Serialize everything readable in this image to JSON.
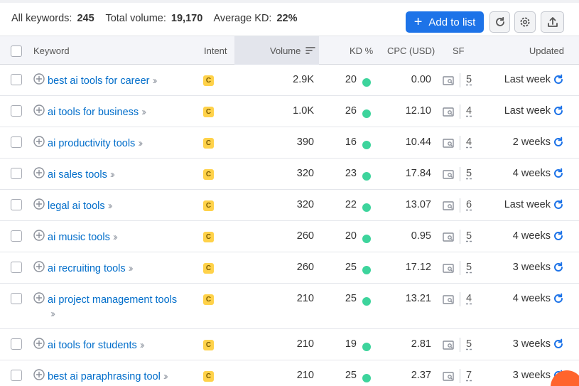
{
  "summary": {
    "all_keywords_label": "All keywords:",
    "all_keywords_value": "245",
    "total_volume_label": "Total volume:",
    "total_volume_value": "19,170",
    "average_kd_label": "Average KD:",
    "average_kd_value": "22%"
  },
  "toolbar": {
    "add_to_list_label": "Add to list",
    "refresh_icon": "refresh-icon",
    "settings_icon": "gear-icon",
    "export_icon": "export-icon",
    "accent_color": "#1d73e8"
  },
  "table": {
    "headers": {
      "keyword": "Keyword",
      "intent": "Intent",
      "volume": "Volume",
      "kd": "KD %",
      "cpc": "CPC (USD)",
      "sf": "SF",
      "updated": "Updated"
    },
    "sorted_by": "Volume",
    "rows": [
      {
        "keyword": "best ai tools for career",
        "intent": "C",
        "volume": "2.9K",
        "kd": "20",
        "cpc": "0.00",
        "sf": "5",
        "updated": "Last week"
      },
      {
        "keyword": "ai tools for business",
        "intent": "C",
        "volume": "1.0K",
        "kd": "26",
        "cpc": "12.10",
        "sf": "4",
        "updated": "Last week"
      },
      {
        "keyword": "ai productivity tools",
        "intent": "C",
        "volume": "390",
        "kd": "16",
        "cpc": "10.44",
        "sf": "4",
        "updated": "2 weeks"
      },
      {
        "keyword": "ai sales tools",
        "intent": "C",
        "volume": "320",
        "kd": "23",
        "cpc": "17.84",
        "sf": "5",
        "updated": "4 weeks"
      },
      {
        "keyword": "legal ai tools",
        "intent": "C",
        "volume": "320",
        "kd": "22",
        "cpc": "13.07",
        "sf": "6",
        "updated": "Last week"
      },
      {
        "keyword": "ai music tools",
        "intent": "C",
        "volume": "260",
        "kd": "20",
        "cpc": "0.95",
        "sf": "5",
        "updated": "4 weeks"
      },
      {
        "keyword": "ai recruiting tools",
        "intent": "C",
        "volume": "260",
        "kd": "25",
        "cpc": "17.12",
        "sf": "5",
        "updated": "3 weeks"
      },
      {
        "keyword": "ai project management tools",
        "intent": "C",
        "volume": "210",
        "kd": "25",
        "cpc": "13.21",
        "sf": "4",
        "updated": "4 weeks"
      },
      {
        "keyword": "ai tools for students",
        "intent": "C",
        "volume": "210",
        "kd": "19",
        "cpc": "2.81",
        "sf": "5",
        "updated": "3 weeks"
      },
      {
        "keyword": "best ai paraphrasing tool",
        "intent": "C",
        "volume": "210",
        "kd": "25",
        "cpc": "2.37",
        "sf": "7",
        "updated": "3 weeks"
      }
    ],
    "kd_dot_color": "#3dd49c",
    "intent_color": "#ffd24a",
    "link_color": "#006dca"
  }
}
